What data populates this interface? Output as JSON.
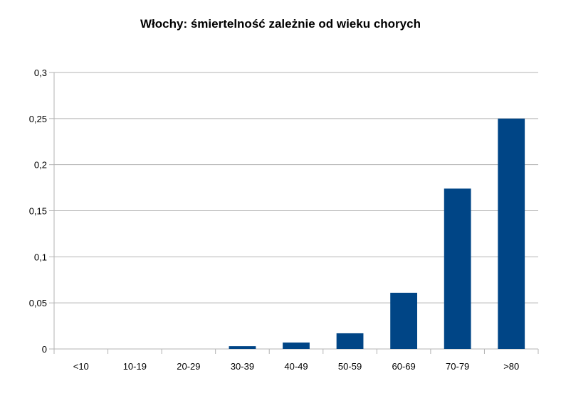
{
  "chart_data": {
    "type": "bar",
    "title": "Włochy: śmiertelność zależnie od wieku chorych",
    "xlabel": "",
    "ylabel": "",
    "categories": [
      "<10",
      "10-19",
      "20-29",
      "30-39",
      "40-49",
      "50-59",
      "60-69",
      "70-79",
      ">80"
    ],
    "values": [
      0,
      0,
      0,
      0.003,
      0.007,
      0.017,
      0.061,
      0.174,
      0.25
    ],
    "ylim": [
      0,
      0.3
    ],
    "yticks": [
      "0",
      "0,05",
      "0,1",
      "0,15",
      "0,2",
      "0,25",
      "0,3"
    ],
    "ytick_values": [
      0,
      0.05,
      0.1,
      0.15,
      0.2,
      0.25,
      0.3
    ],
    "grid": true,
    "legend": "none",
    "colors": {
      "bar": "#004586",
      "grid": "#b3b3b3",
      "axis": "#b3b3b3"
    }
  }
}
